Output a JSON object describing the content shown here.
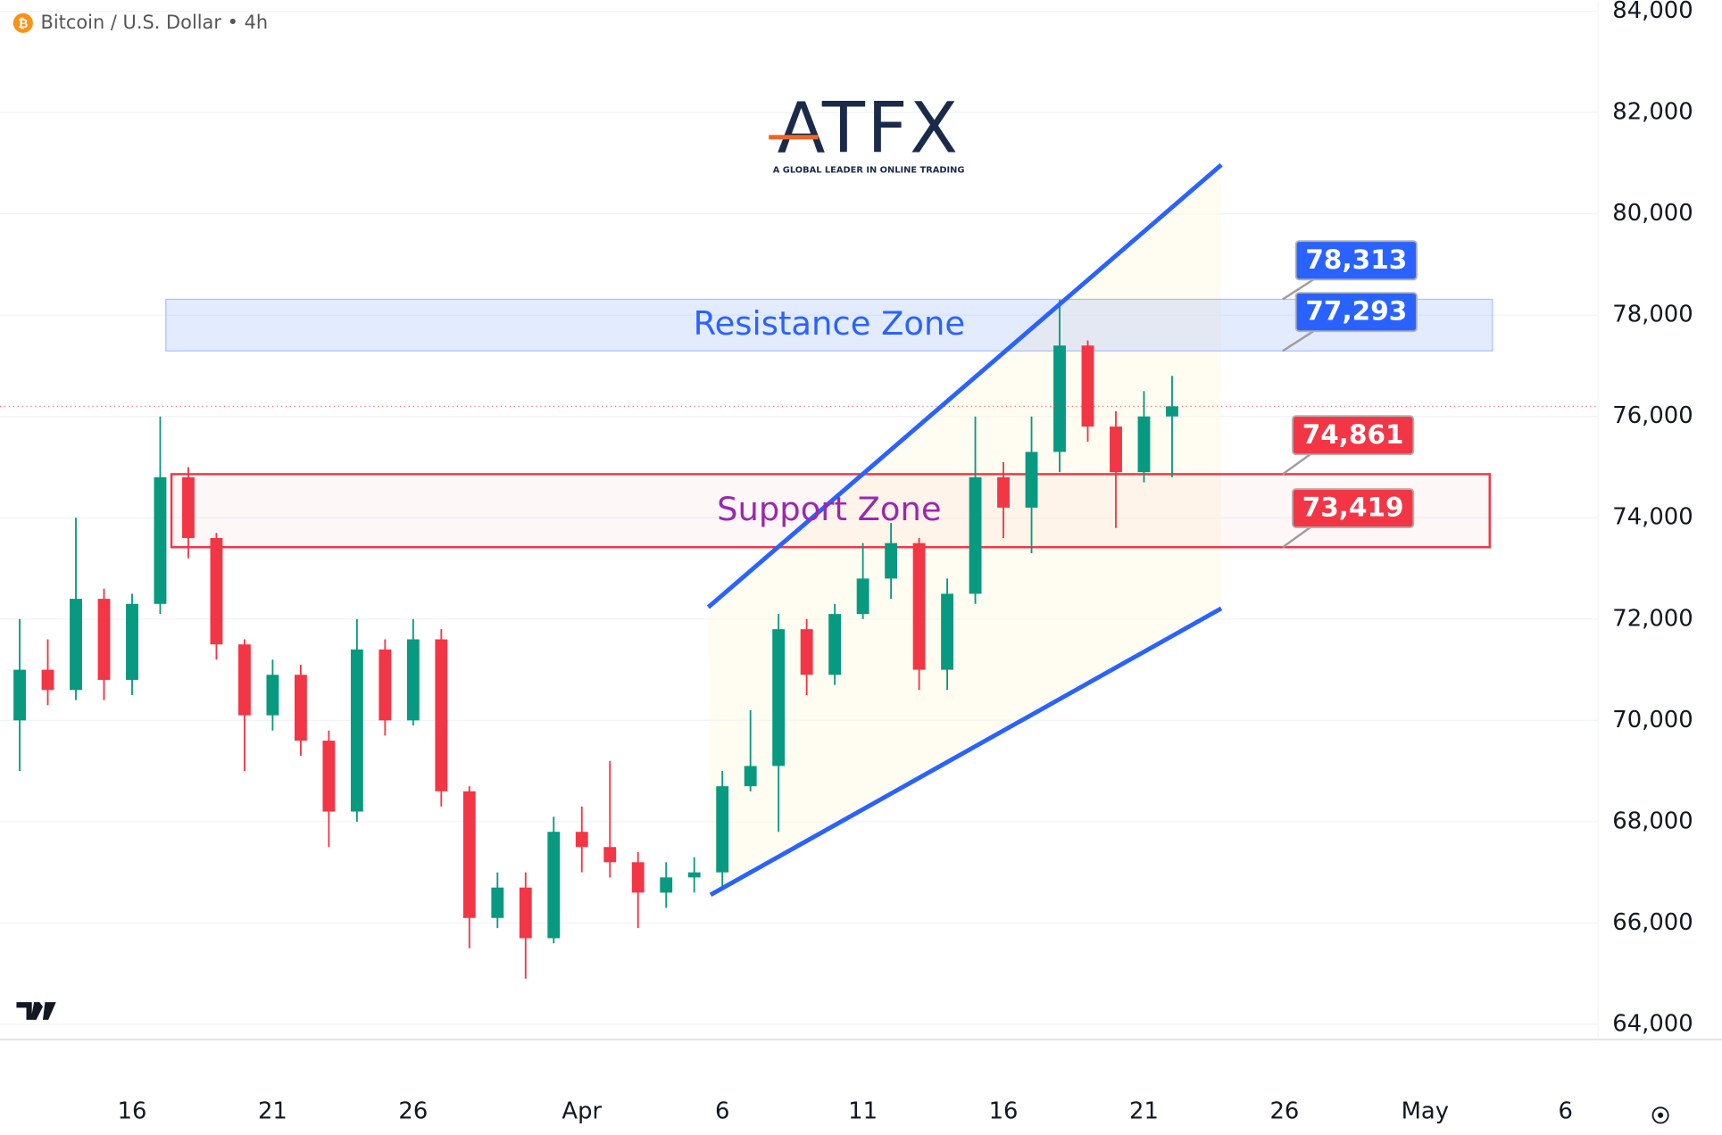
{
  "chart_data": {
    "type": "candlestick",
    "title": "Bitcoin / U.S. Dollar • 4h",
    "logo": {
      "text": "ATFX",
      "tagline": "A GLOBAL LEADER IN ONLINE TRADING"
    },
    "x": [
      12,
      13,
      14,
      15,
      16,
      17,
      18,
      19,
      20,
      21,
      22,
      23,
      24,
      25,
      26,
      27,
      28,
      29,
      30,
      31,
      32,
      33,
      34,
      35,
      36,
      37,
      38,
      39,
      40,
      41,
      42,
      43,
      44,
      45,
      46,
      47,
      48,
      49,
      50,
      51,
      52,
      53
    ],
    "open": [
      70000,
      71000,
      70600,
      72400,
      70800,
      72300,
      74800,
      73600,
      71500,
      70100,
      70900,
      69600,
      68200,
      71400,
      70000,
      71600,
      68600,
      66100,
      66700,
      65700,
      67800,
      67500,
      67200,
      66600,
      66900,
      67000,
      68700,
      69100,
      71800,
      70900,
      72100,
      72800,
      73500,
      71000,
      72500,
      74800,
      74200,
      75300,
      77400,
      75800,
      74900,
      76000
    ],
    "high": [
      72000,
      71600,
      74000,
      72600,
      72500,
      76000,
      75000,
      73700,
      71600,
      71200,
      71100,
      69800,
      72000,
      71600,
      72000,
      71800,
      68700,
      67000,
      67000,
      68100,
      68300,
      69200,
      67400,
      67200,
      67300,
      69000,
      70200,
      72100,
      72000,
      72300,
      73500,
      73900,
      73600,
      72800,
      76000,
      75100,
      76000,
      78300,
      77500,
      76100,
      76500,
      76800
    ],
    "low": [
      69000,
      70300,
      70400,
      70400,
      70500,
      72100,
      73200,
      71200,
      69000,
      69800,
      69300,
      67500,
      68000,
      69700,
      69900,
      68300,
      65500,
      65900,
      64900,
      65600,
      67000,
      66900,
      65900,
      66300,
      66600,
      66700,
      68600,
      67800,
      70500,
      70700,
      72000,
      72400,
      70600,
      70600,
      72300,
      73600,
      73300,
      74900,
      75500,
      73800,
      74700,
      74800
    ],
    "close": [
      71000,
      70600,
      72400,
      70800,
      72300,
      74800,
      73600,
      71500,
      70100,
      70900,
      69600,
      68200,
      71400,
      70000,
      71600,
      68600,
      66100,
      66700,
      65700,
      67800,
      67500,
      67200,
      66600,
      66900,
      67000,
      68700,
      69100,
      71800,
      70900,
      72100,
      72800,
      73500,
      71000,
      72500,
      74800,
      74200,
      75300,
      77400,
      75800,
      74900,
      76000,
      76200
    ],
    "up_color": "#089981",
    "down_color": "#f23645",
    "xlim": [
      11.3,
      68.15
    ],
    "xticks": [
      16,
      21,
      26,
      {
        "value": 32,
        "label": "Apr"
      },
      {
        "value": 37,
        "label": "6"
      },
      {
        "value": 42,
        "label": "11"
      },
      {
        "value": 47,
        "label": "16"
      },
      {
        "value": 52,
        "label": "21"
      },
      {
        "value": 57,
        "label": "26"
      },
      {
        "value": 62,
        "label": "May"
      },
      {
        "value": 67,
        "label": "6"
      }
    ],
    "ylim": [
      63700,
      84200
    ],
    "yticks": [
      {
        "value": 64000,
        "label": "64,000"
      },
      {
        "value": 66000,
        "label": "66,000"
      },
      {
        "value": 68000,
        "label": "68,000"
      },
      {
        "value": 70000,
        "label": "70,000"
      },
      {
        "value": 72000,
        "label": "72,000"
      },
      {
        "value": 74000,
        "label": "74,000"
      },
      {
        "value": 76000,
        "label": "76,000"
      },
      {
        "value": 78000,
        "label": "78,000"
      },
      {
        "value": 80000,
        "label": "80,000"
      },
      {
        "value": 82000,
        "label": "82,000"
      },
      {
        "value": 84000,
        "label": "84,000"
      }
    ],
    "grid": true,
    "zones": [
      {
        "name": "Resistance Zone",
        "top": 78313,
        "bottom": 77293,
        "value_labels": [
          "78,313",
          "77,293"
        ],
        "x": [
          17.2,
          64.4
        ],
        "color": "#2962ff",
        "text_color": "#2962ff"
      },
      {
        "name": "Support Zone",
        "top": 74861,
        "bottom": 73419,
        "value_labels": [
          "74,861",
          "73,419"
        ],
        "x": [
          17.4,
          64.3
        ],
        "color": "#f23645",
        "text_color": "#9c27b0"
      }
    ],
    "channel": [
      {
        "x": [
          36.5,
          54.75
        ],
        "y": [
          72234,
          80966
        ]
      },
      {
        "x": [
          36.58,
          54.75
        ],
        "y": [
          66557,
          72210
        ]
      }
    ],
    "channel_color": "#2962ff"
  }
}
